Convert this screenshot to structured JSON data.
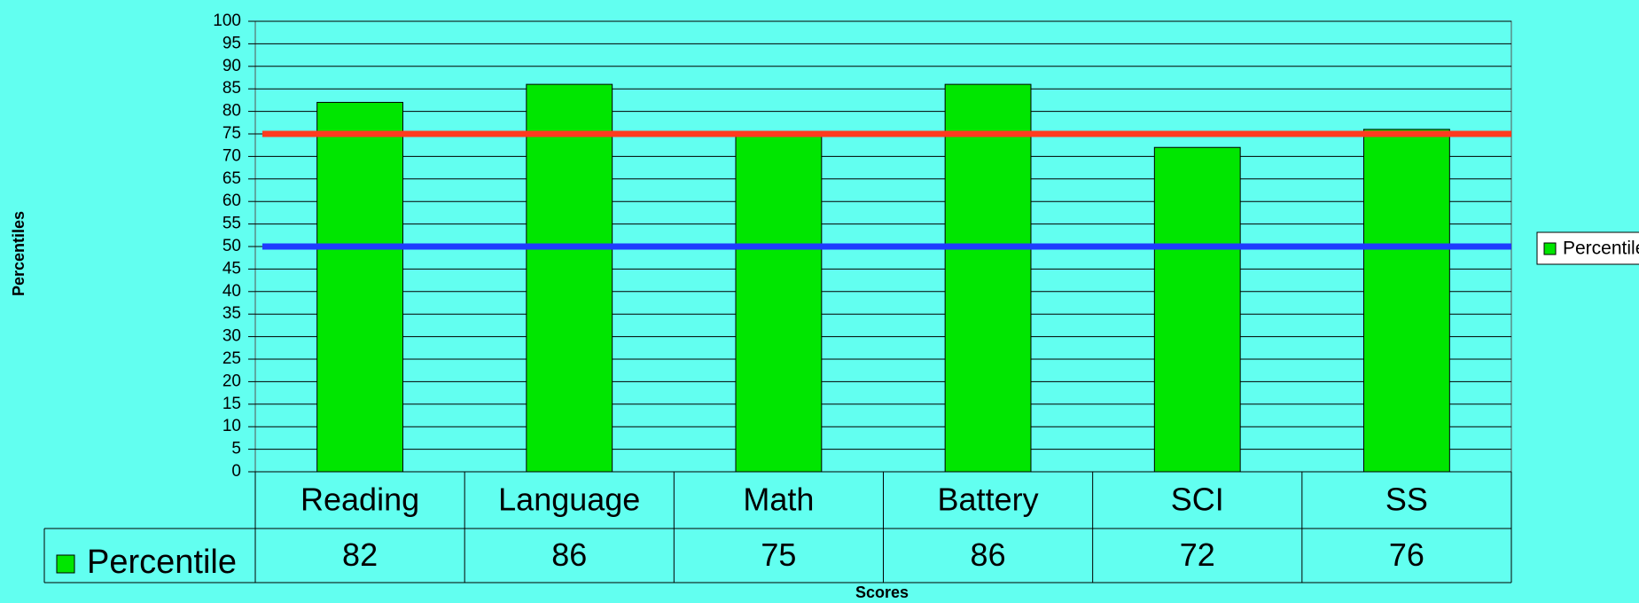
{
  "chart_data": {
    "type": "bar",
    "x_label": "Scores",
    "y_label": "Percentiles",
    "categories": [
      "Reading",
      "Language",
      "Math",
      "Battery",
      "SCI",
      "SS"
    ],
    "series": [
      {
        "name": "Percentile",
        "color": "#00e600",
        "values": [
          82,
          86,
          75,
          86,
          72,
          76
        ]
      }
    ],
    "ylim": [
      0,
      100
    ],
    "yticks": [
      0,
      5,
      10,
      15,
      20,
      25,
      30,
      35,
      40,
      45,
      50,
      55,
      60,
      65,
      70,
      75,
      80,
      85,
      90,
      95,
      100
    ],
    "grid": true,
    "reference_lines": [
      {
        "value": 75,
        "color": "#ff3b1f"
      },
      {
        "value": 50,
        "color": "#1f3bff"
      }
    ],
    "data_table": true,
    "legend": "right"
  }
}
